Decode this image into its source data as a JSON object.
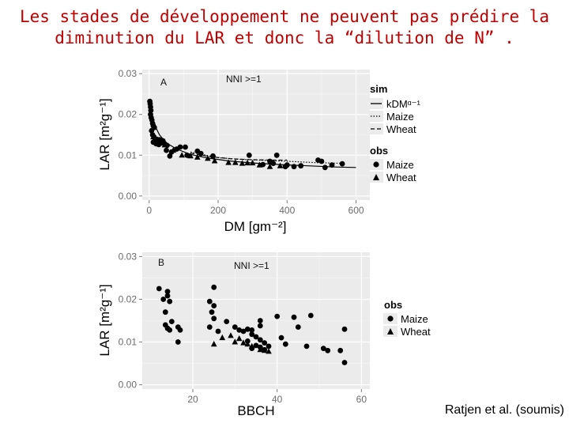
{
  "slide": {
    "title_line1": "Les stades de développement ne peuvent pas prédire la",
    "title_line2": "diminution du LAR et donc la “dilution de N” .",
    "credit": "Ratjen et al. (soumis)",
    "title_color": "#c00000"
  },
  "chart_data": [
    {
      "type": "scatter",
      "panel_label": "A",
      "annotation": "NNI >=1",
      "xlabel": "DM [gm⁻²]",
      "ylabel": "LAR [m²g⁻¹]",
      "xlim": [
        -20,
        640
      ],
      "ylim": [
        -0.001,
        0.031
      ],
      "xticks": [
        0,
        200,
        400,
        600
      ],
      "xtick_labels": [
        "0",
        "200",
        "400",
        "600"
      ],
      "yticks": [
        0.0,
        0.01,
        0.02,
        0.03
      ],
      "ytick_labels": [
        "0.00",
        "0.01",
        "0.02",
        "0.03"
      ],
      "grid": true,
      "background": "#ebebeb",
      "legend_sim": {
        "title": "sim",
        "items": [
          {
            "label": "kDMᵅ⁻¹",
            "style": "solid"
          },
          {
            "label": "Maize",
            "style": "dotted"
          },
          {
            "label": "Wheat",
            "style": "dashed"
          }
        ]
      },
      "legend_obs": {
        "title": "obs",
        "items": [
          {
            "label": "Maize",
            "marker": "circle"
          },
          {
            "label": "Wheat",
            "marker": "triangle"
          }
        ]
      },
      "series": [
        {
          "name": "Maize",
          "marker": "circle",
          "points": [
            [
              2,
              0.0232
            ],
            [
              3,
              0.0226
            ],
            [
              4,
              0.0218
            ],
            [
              5,
              0.021
            ],
            [
              4,
              0.02
            ],
            [
              6,
              0.0192
            ],
            [
              8,
              0.0186
            ],
            [
              10,
              0.0178
            ],
            [
              12,
              0.0172
            ],
            [
              15,
              0.0168
            ],
            [
              7,
              0.016
            ],
            [
              10,
              0.015
            ],
            [
              14,
              0.0145
            ],
            [
              18,
              0.014
            ],
            [
              22,
              0.0136
            ],
            [
              26,
              0.0133
            ],
            [
              30,
              0.0138
            ],
            [
              35,
              0.013
            ],
            [
              40,
              0.0135
            ],
            [
              45,
              0.0128
            ],
            [
              52,
              0.0124
            ],
            [
              12,
              0.0132
            ],
            [
              20,
              0.0128
            ],
            [
              28,
              0.0126
            ],
            [
              50,
              0.0112
            ],
            [
              65,
              0.0108
            ],
            [
              80,
              0.0115
            ],
            [
              90,
              0.012
            ],
            [
              110,
              0.01
            ],
            [
              60,
              0.0098
            ],
            [
              105,
              0.012
            ],
            [
              140,
              0.011
            ],
            [
              150,
              0.0104
            ],
            [
              185,
              0.0098
            ],
            [
              290,
              0.01
            ],
            [
              330,
              0.0077
            ],
            [
              350,
              0.0085
            ],
            [
              360,
              0.008
            ],
            [
              370,
              0.01
            ],
            [
              395,
              0.0072
            ],
            [
              400,
              0.0076
            ],
            [
              420,
              0.0072
            ],
            [
              440,
              0.0074
            ],
            [
              490,
              0.0088
            ],
            [
              500,
              0.0085
            ],
            [
              510,
              0.007
            ],
            [
              530,
              0.0076
            ],
            [
              560,
              0.0079
            ]
          ]
        },
        {
          "name": "Wheat",
          "marker": "triangle",
          "points": [
            [
              12,
              0.0145
            ],
            [
              25,
              0.0138
            ],
            [
              45,
              0.0125
            ],
            [
              70,
              0.0112
            ],
            [
              95,
              0.01
            ],
            [
              120,
              0.0098
            ],
            [
              140,
              0.0095
            ],
            [
              170,
              0.0092
            ],
            [
              190,
              0.0086
            ],
            [
              230,
              0.0082
            ],
            [
              250,
              0.0082
            ],
            [
              270,
              0.008
            ],
            [
              285,
              0.0081
            ],
            [
              300,
              0.0081
            ],
            [
              320,
              0.0076
            ],
            [
              350,
              0.0072
            ],
            [
              380,
              0.0074
            ]
          ]
        }
      ],
      "curves": [
        {
          "name": "kDMᵅ⁻¹",
          "style": "solid",
          "points": [
            [
              5,
              0.0205
            ],
            [
              15,
              0.0175
            ],
            [
              30,
              0.015
            ],
            [
              50,
              0.013
            ],
            [
              80,
              0.0115
            ],
            [
              120,
              0.0102
            ],
            [
              170,
              0.0093
            ],
            [
              230,
              0.0086
            ],
            [
              300,
              0.0081
            ],
            [
              380,
              0.0077
            ],
            [
              460,
              0.0074
            ],
            [
              540,
              0.0071
            ],
            [
              600,
              0.007
            ]
          ]
        },
        {
          "name": "Maize",
          "style": "dotted",
          "points": [
            [
              120,
              0.0108
            ],
            [
              200,
              0.0094
            ],
            [
              260,
              0.009
            ],
            [
              320,
              0.0088
            ],
            [
              400,
              0.0085
            ],
            [
              480,
              0.0082
            ],
            [
              560,
              0.008
            ]
          ]
        },
        {
          "name": "Wheat",
          "style": "dashed",
          "points": [
            [
              120,
              0.0105
            ],
            [
              180,
              0.0096
            ],
            [
              240,
              0.0091
            ],
            [
              300,
              0.0089
            ],
            [
              360,
              0.0088
            ],
            [
              400,
              0.0088
            ]
          ]
        }
      ]
    },
    {
      "type": "scatter",
      "panel_label": "B",
      "annotation": "NNI >=1",
      "xlabel": "BBCH",
      "ylabel": "LAR [m²g⁻¹]",
      "xlim": [
        8,
        62
      ],
      "ylim": [
        -0.001,
        0.031
      ],
      "xticks": [
        20,
        40,
        60
      ],
      "xtick_labels": [
        "20",
        "40",
        "60"
      ],
      "yticks": [
        0.0,
        0.01,
        0.02,
        0.03
      ],
      "ytick_labels": [
        "0.00",
        "0.01",
        "0.02",
        "0.03"
      ],
      "grid": true,
      "background": "#ebebeb",
      "legend_obs": {
        "title": "obs",
        "items": [
          {
            "label": "Maize",
            "marker": "circle"
          },
          {
            "label": "Wheat",
            "marker": "triangle"
          }
        ]
      },
      "series": [
        {
          "name": "Maize",
          "marker": "circle",
          "points": [
            [
              12,
              0.0225
            ],
            [
              13,
              0.02
            ],
            [
              13.5,
              0.017
            ],
            [
              14,
              0.0218
            ],
            [
              14,
              0.0208
            ],
            [
              14.5,
              0.0195
            ],
            [
              13.5,
              0.014
            ],
            [
              14,
              0.0132
            ],
            [
              14.5,
              0.0128
            ],
            [
              15,
              0.0148
            ],
            [
              16.5,
              0.0135
            ],
            [
              17,
              0.0128
            ],
            [
              16.5,
              0.01
            ],
            [
              25,
              0.0228
            ],
            [
              24,
              0.0195
            ],
            [
              25,
              0.0185
            ],
            [
              24.5,
              0.017
            ],
            [
              25,
              0.0155
            ],
            [
              24,
              0.0135
            ],
            [
              26,
              0.0125
            ],
            [
              28,
              0.0148
            ],
            [
              30,
              0.0135
            ],
            [
              31,
              0.0128
            ],
            [
              32,
              0.0125
            ],
            [
              33,
              0.013
            ],
            [
              34,
              0.0128
            ],
            [
              34,
              0.0118
            ],
            [
              35,
              0.0112
            ],
            [
              33,
              0.0102
            ],
            [
              36,
              0.0105
            ],
            [
              36,
              0.015
            ],
            [
              36,
              0.0138
            ],
            [
              37,
              0.0098
            ],
            [
              38,
              0.009
            ],
            [
              34,
              0.0085
            ],
            [
              35,
              0.0092
            ],
            [
              36,
              0.0088
            ],
            [
              37,
              0.0082
            ],
            [
              41,
              0.011
            ],
            [
              40,
              0.016
            ],
            [
              44,
              0.0158
            ],
            [
              48,
              0.0162
            ],
            [
              45,
              0.0135
            ],
            [
              42,
              0.0095
            ],
            [
              47,
              0.009
            ],
            [
              51,
              0.0085
            ],
            [
              52,
              0.008
            ],
            [
              55,
              0.008
            ],
            [
              56,
              0.013
            ],
            [
              56,
              0.0052
            ]
          ]
        },
        {
          "name": "Wheat",
          "marker": "triangle",
          "points": [
            [
              25,
              0.0095
            ],
            [
              27,
              0.011
            ],
            [
              29,
              0.0115
            ],
            [
              30,
              0.01
            ],
            [
              31,
              0.0108
            ],
            [
              32,
              0.0098
            ],
            [
              33,
              0.0095
            ],
            [
              34,
              0.009
            ],
            [
              36,
              0.0082
            ],
            [
              37,
              0.008
            ],
            [
              38,
              0.0078
            ]
          ]
        }
      ]
    }
  ]
}
